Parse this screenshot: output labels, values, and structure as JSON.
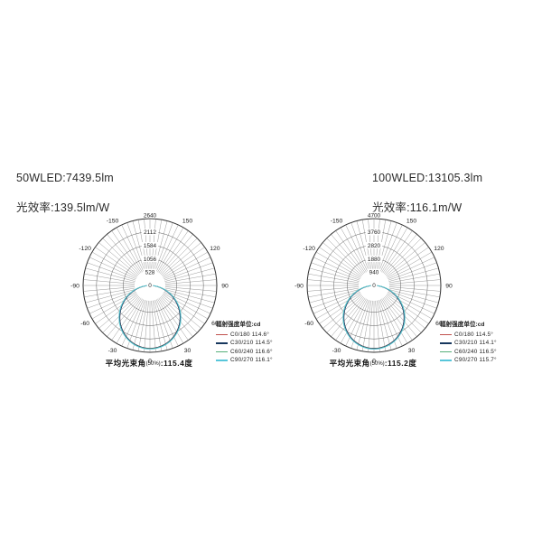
{
  "page": {
    "background": "#ffffff"
  },
  "chart_data": [
    {
      "type": "line",
      "subtype": "polar_photometric_intensity",
      "title": "50WLED:7439.5lm",
      "efficacy_label": "光效率:139.5lm/W",
      "unit_label": "辐射强度单位:cd",
      "radial_unit": "cd",
      "radial_ticks": [
        0,
        528,
        1056,
        1584,
        2112,
        2640
      ],
      "radial_max": 2640,
      "center_label": "0",
      "angle_ticks_deg": [
        -150,
        -120,
        -90,
        -60,
        -30,
        0,
        30,
        60,
        90,
        120,
        150
      ],
      "spoke_step_deg": 5,
      "legend_position": "bottom-right",
      "grid": true,
      "series": [
        {
          "name": "C0/180 114.6°",
          "plane": "C0/180",
          "beam_angle_deg": 114.6,
          "peak_cd": 2480,
          "color": "#c0504d"
        },
        {
          "name": "C30/210 114.5°",
          "plane": "C30/210",
          "beam_angle_deg": 114.5,
          "peak_cd": 2485,
          "color": "#17375e"
        },
        {
          "name": "C60/240 116.6°",
          "plane": "C60/240",
          "beam_angle_deg": 116.6,
          "peak_cd": 2500,
          "color": "#55b079"
        },
        {
          "name": "C90/270 116.1°",
          "plane": "C90/270",
          "beam_angle_deg": 116.1,
          "peak_cd": 2510,
          "color": "#58c6da"
        }
      ],
      "avg_beam_angle_50pct_deg": 115.4,
      "caption": {
        "prefix": "平均光束角",
        "pct": "(50%)",
        "suffix": ":115.4度"
      }
    },
    {
      "type": "line",
      "subtype": "polar_photometric_intensity",
      "title": "100WLED:13105.3lm",
      "efficacy_label": "光效率:116.1m/W",
      "unit_label": "辐射强度单位:cd",
      "radial_unit": "cd",
      "radial_ticks": [
        0,
        940,
        1880,
        2820,
        3760,
        4700
      ],
      "radial_max": 4700,
      "center_label": "0",
      "angle_ticks_deg": [
        -150,
        -120,
        -90,
        -60,
        -30,
        0,
        30,
        60,
        90,
        120,
        150
      ],
      "spoke_step_deg": 5,
      "legend_position": "bottom-right",
      "grid": true,
      "series": [
        {
          "name": "C0/180 114.5°",
          "plane": "C0/180",
          "beam_angle_deg": 114.5,
          "peak_cd": 4420,
          "color": "#c0504d"
        },
        {
          "name": "C30/210 114.1°",
          "plane": "C30/210",
          "beam_angle_deg": 114.1,
          "peak_cd": 4430,
          "color": "#17375e"
        },
        {
          "name": "C60/240 116.5°",
          "plane": "C60/240",
          "beam_angle_deg": 116.5,
          "peak_cd": 4460,
          "color": "#55b079"
        },
        {
          "name": "C90/270 115.7°",
          "plane": "C90/270",
          "beam_angle_deg": 115.7,
          "peak_cd": 4475,
          "color": "#58c6da"
        }
      ],
      "avg_beam_angle_50pct_deg": 115.2,
      "caption": {
        "prefix": "平均光束角",
        "pct": "(50%)",
        "suffix": ":115.2度"
      }
    }
  ]
}
